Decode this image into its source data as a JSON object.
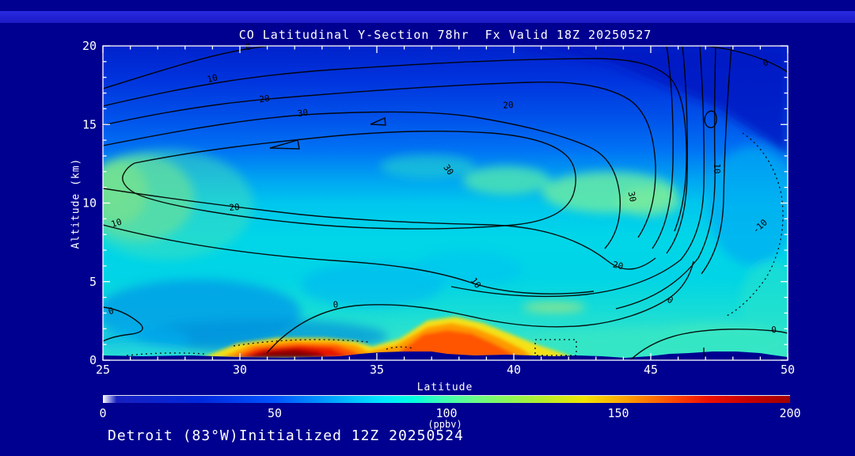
{
  "page": {
    "background": "#000090",
    "frame_color": "#ffffff",
    "text_color": "#ffffff",
    "contour_color": "#000000"
  },
  "footer": "Detroit (83°W)Initialized 12Z 20250524",
  "chart_data": {
    "type": "heatmap",
    "subtype": "filled-contour latitude/altitude cross-section",
    "title": "CO Latitudinal Y-Section 78hr  Fx Valid 18Z 20250527",
    "xlabel": "Latitude",
    "ylabel": "Altitude (km)",
    "xlim": [
      25,
      50
    ],
    "ylim": [
      0,
      20
    ],
    "x_ticks": [
      25,
      30,
      35,
      40,
      45,
      50
    ],
    "x_minor_step": 1,
    "y_ticks": [
      0,
      5,
      10,
      15,
      20
    ],
    "y_minor_step": 1,
    "grid": false,
    "colorbar": {
      "min": 0,
      "max": 200,
      "ticks": [
        0,
        50,
        100,
        150,
        200
      ],
      "units": "(ppbv)",
      "gradient": [
        {
          "p": 0.0,
          "c": "#ffffff"
        },
        {
          "p": 0.02,
          "c": "#1820c0"
        },
        {
          "p": 0.14,
          "c": "#0028dc"
        },
        {
          "p": 0.25,
          "c": "#0055ff"
        },
        {
          "p": 0.33,
          "c": "#00a0ff"
        },
        {
          "p": 0.37,
          "c": "#00c8ff"
        },
        {
          "p": 0.41,
          "c": "#00eaff"
        },
        {
          "p": 0.45,
          "c": "#00ffe0"
        },
        {
          "p": 0.49,
          "c": "#38ffb8"
        },
        {
          "p": 0.54,
          "c": "#68fc88"
        },
        {
          "p": 0.59,
          "c": "#8cf658"
        },
        {
          "p": 0.64,
          "c": "#b4ee2c"
        },
        {
          "p": 0.7,
          "c": "#f0e400"
        },
        {
          "p": 0.75,
          "c": "#ffae00"
        },
        {
          "p": 0.79,
          "c": "#ff7c00"
        },
        {
          "p": 0.84,
          "c": "#ff3c00"
        },
        {
          "p": 0.88,
          "c": "#ee1000"
        },
        {
          "p": 0.94,
          "c": "#c60000"
        },
        {
          "p": 1.0,
          "c": "#a00000"
        }
      ]
    },
    "contour_levels_solid": [
      0,
      10,
      20,
      30
    ],
    "contour_levels_dotted_negative": [
      -10
    ],
    "contour_labels": [
      {
        "v": "0",
        "lat": 30.3,
        "alt": 19.9,
        "rot": -8,
        "dotted": false
      },
      {
        "v": "10",
        "lat": 29.0,
        "alt": 17.9,
        "rot": -14,
        "dotted": false
      },
      {
        "v": "20",
        "lat": 30.9,
        "alt": 16.6,
        "rot": -8,
        "dotted": false
      },
      {
        "v": "30",
        "lat": 32.3,
        "alt": 15.7,
        "rot": -8,
        "dotted": false
      },
      {
        "v": "20",
        "lat": 39.8,
        "alt": 16.2,
        "rot": -4,
        "dotted": false
      },
      {
        "v": "0",
        "lat": 49.2,
        "alt": 18.9,
        "rot": -18,
        "dotted": false
      },
      {
        "v": "10",
        "lat": 47.4,
        "alt": 12.2,
        "rot": 90,
        "dotted": false
      },
      {
        "v": "30",
        "lat": 37.6,
        "alt": 12.1,
        "rot": 55,
        "dotted": false
      },
      {
        "v": "30",
        "lat": 44.3,
        "alt": 10.4,
        "rot": 78,
        "dotted": false
      },
      {
        "v": "20",
        "lat": 29.8,
        "alt": 9.7,
        "rot": -5,
        "dotted": false
      },
      {
        "v": "10",
        "lat": 25.5,
        "alt": 8.7,
        "rot": -18,
        "dotted": false
      },
      {
        "v": "20",
        "lat": 43.8,
        "alt": 6.0,
        "rot": 12,
        "dotted": false
      },
      {
        "v": "10",
        "lat": 38.6,
        "alt": 4.9,
        "rot": 52,
        "dotted": false
      },
      {
        "v": "0",
        "lat": 33.5,
        "alt": 3.5,
        "rot": -5,
        "dotted": false
      },
      {
        "v": "0",
        "lat": 45.7,
        "alt": 3.8,
        "rot": 28,
        "dotted": false
      },
      {
        "v": "0",
        "lat": 25.3,
        "alt": 3.1,
        "rot": -15,
        "dotted": false
      },
      {
        "v": "0",
        "lat": 49.5,
        "alt": 1.9,
        "rot": -5,
        "dotted": false
      },
      {
        "v": "-10",
        "lat": 49.0,
        "alt": 8.5,
        "rot": -42,
        "dotted": true
      }
    ],
    "surface_maxima_estimated": [
      {
        "lat": 31.5,
        "alt_km": 0.5,
        "value_ppbv": 200
      },
      {
        "lat": 37.5,
        "alt_km": 1.2,
        "value_ppbv": 165
      }
    ],
    "mid_trop_maximum_estimated": {
      "lat": 25.5,
      "alt_km": 10.5,
      "value_ppbv": 135
    }
  }
}
